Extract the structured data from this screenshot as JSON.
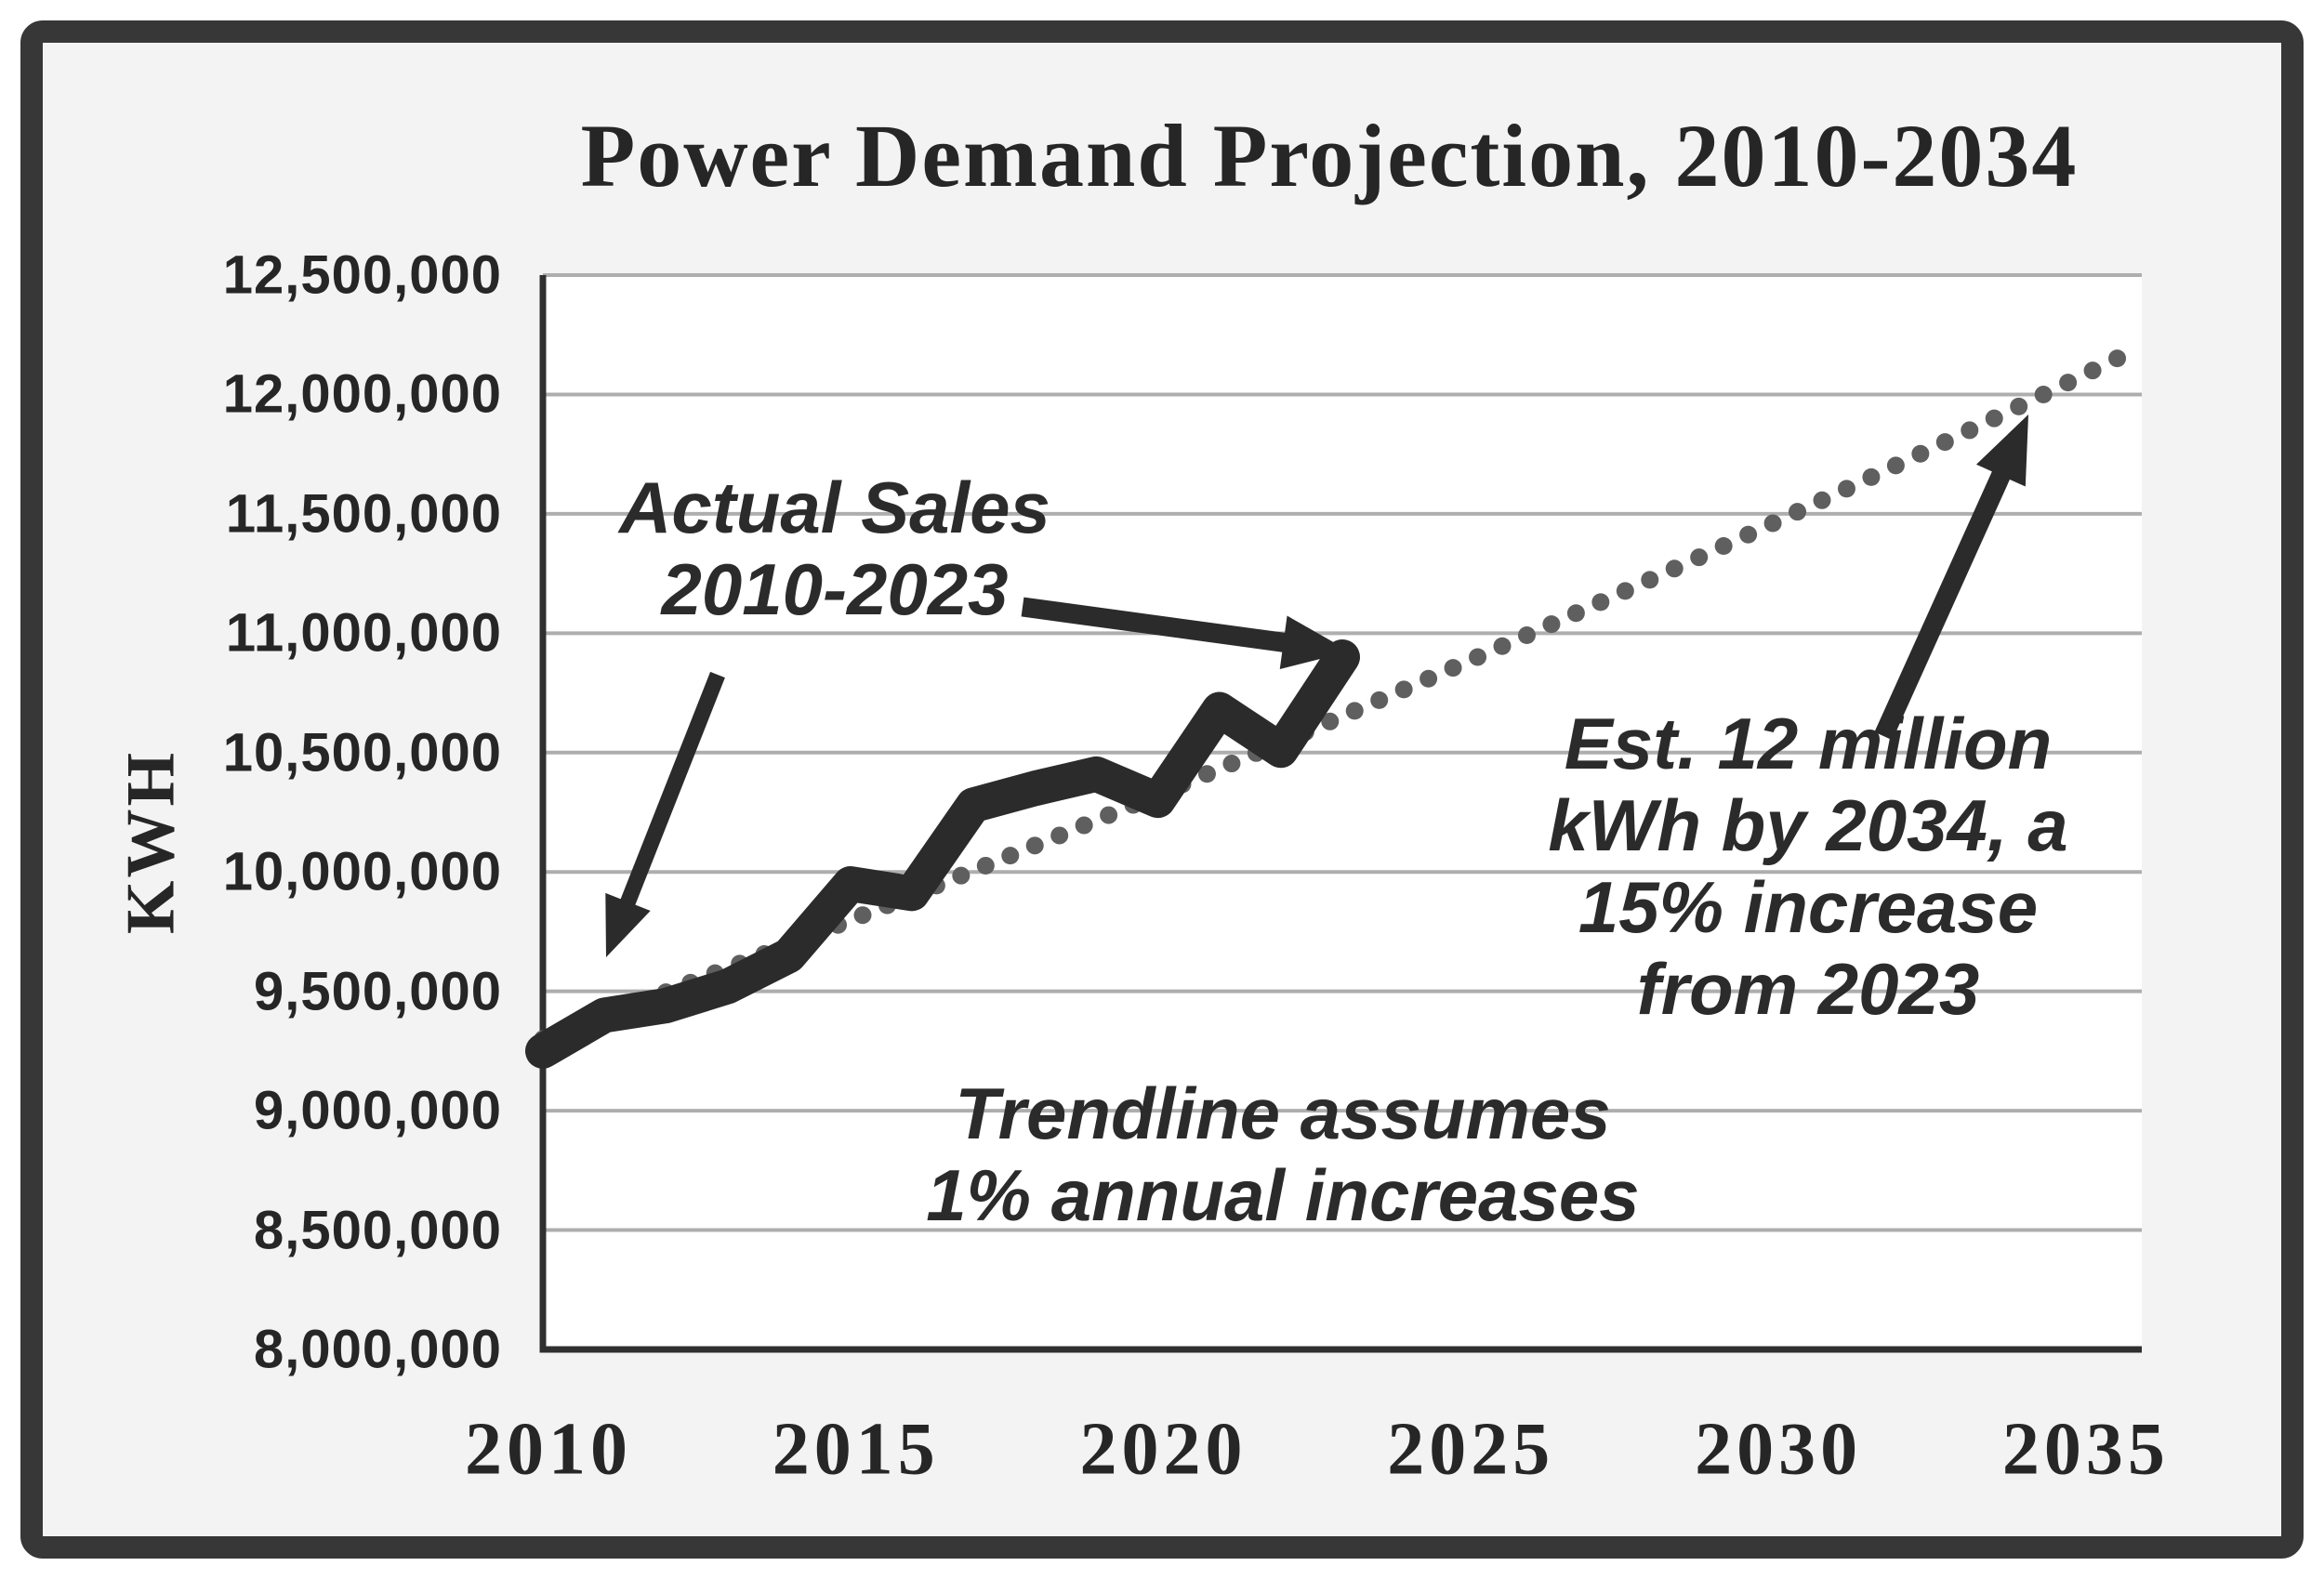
{
  "title": "Power Demand Projection, 2010-2034",
  "colors": {
    "frame": "#373737",
    "background": "#f3f3f3",
    "plot_background": "#ffffff",
    "gridline": "#aeaeae",
    "axis": "#303030",
    "actual_line": "#2b2b2b",
    "trendline_dots": "#5f5f5f",
    "arrow": "#2b2b2b",
    "text": "#262626"
  },
  "y_axis": {
    "label": "KWH",
    "min": 8000000,
    "max": 12500000,
    "step": 500000,
    "tick_values": [
      12500000,
      12000000,
      11500000,
      11000000,
      10500000,
      10000000,
      9500000,
      9000000,
      8500000,
      8000000
    ],
    "tick_labels": [
      "12,500,000",
      "12,000,000",
      "11,500,000",
      "11,000,000",
      "10,500,000",
      "10,000,000",
      "9,500,000",
      "9,000,000",
      "8,500,000",
      "8,000,000"
    ]
  },
  "x_axis": {
    "min": 2010,
    "max": 2036,
    "tick_values": [
      2010,
      2015,
      2020,
      2025,
      2030,
      2035
    ],
    "tick_labels": [
      "2010",
      "2015",
      "2020",
      "2025",
      "2030",
      "2035"
    ]
  },
  "annotations": {
    "actual_sales": {
      "lines": [
        "Actual Sales",
        "2010-2023"
      ]
    },
    "trendline_note": {
      "lines": [
        "Trendline assumes",
        "1% annual increases"
      ]
    },
    "estimate_note": {
      "lines": [
        "Est. 12 million",
        "kWh by 2034, a",
        "15% increase",
        "from 2023"
      ]
    }
  },
  "chart_data": {
    "type": "line",
    "title": "Power Demand Projection, 2010-2034",
    "xlabel": "",
    "ylabel": "KWH",
    "ylim": [
      8000000,
      12500000
    ],
    "xlim": [
      2010,
      2036
    ],
    "grid": true,
    "legend_position": "none",
    "series": [
      {
        "name": "Actual Sales 2010-2023",
        "style": "solid",
        "color": "#2b2b2b",
        "x": [
          2010,
          2011,
          2012,
          2013,
          2014,
          2015,
          2016,
          2017,
          2018,
          2019,
          2020,
          2021,
          2022,
          2023
        ],
        "values": [
          9250000,
          9400000,
          9440000,
          9520000,
          9650000,
          9950000,
          9910000,
          10280000,
          10350000,
          10410000,
          10300000,
          10680000,
          10510000,
          10900000
        ]
      },
      {
        "name": "Trendline (1% annual increases)",
        "style": "dotted",
        "color": "#5f5f5f",
        "start_year": 2010,
        "end_year": 2035.75,
        "start_value": 9300000,
        "annual_growth_rate": 1.0105,
        "dot_interval_years": 0.4,
        "x": [
          2010,
          2011,
          2012,
          2013,
          2014,
          2015,
          2016,
          2017,
          2018,
          2019,
          2020,
          2021,
          2022,
          2023,
          2024,
          2025,
          2026,
          2027,
          2028,
          2029,
          2030,
          2031,
          2032,
          2033,
          2034,
          2035
        ],
        "values": [
          9300000,
          9398000,
          9496000,
          9596000,
          9697000,
          9799000,
          9901000,
          10005000,
          10111000,
          10217000,
          10324000,
          10432000,
          10542000,
          10653000,
          10764000,
          10877000,
          10992000,
          11107000,
          11224000,
          11342000,
          11461000,
          11581000,
          11703000,
          11825000,
          11950000,
          12075000
        ]
      }
    ]
  }
}
